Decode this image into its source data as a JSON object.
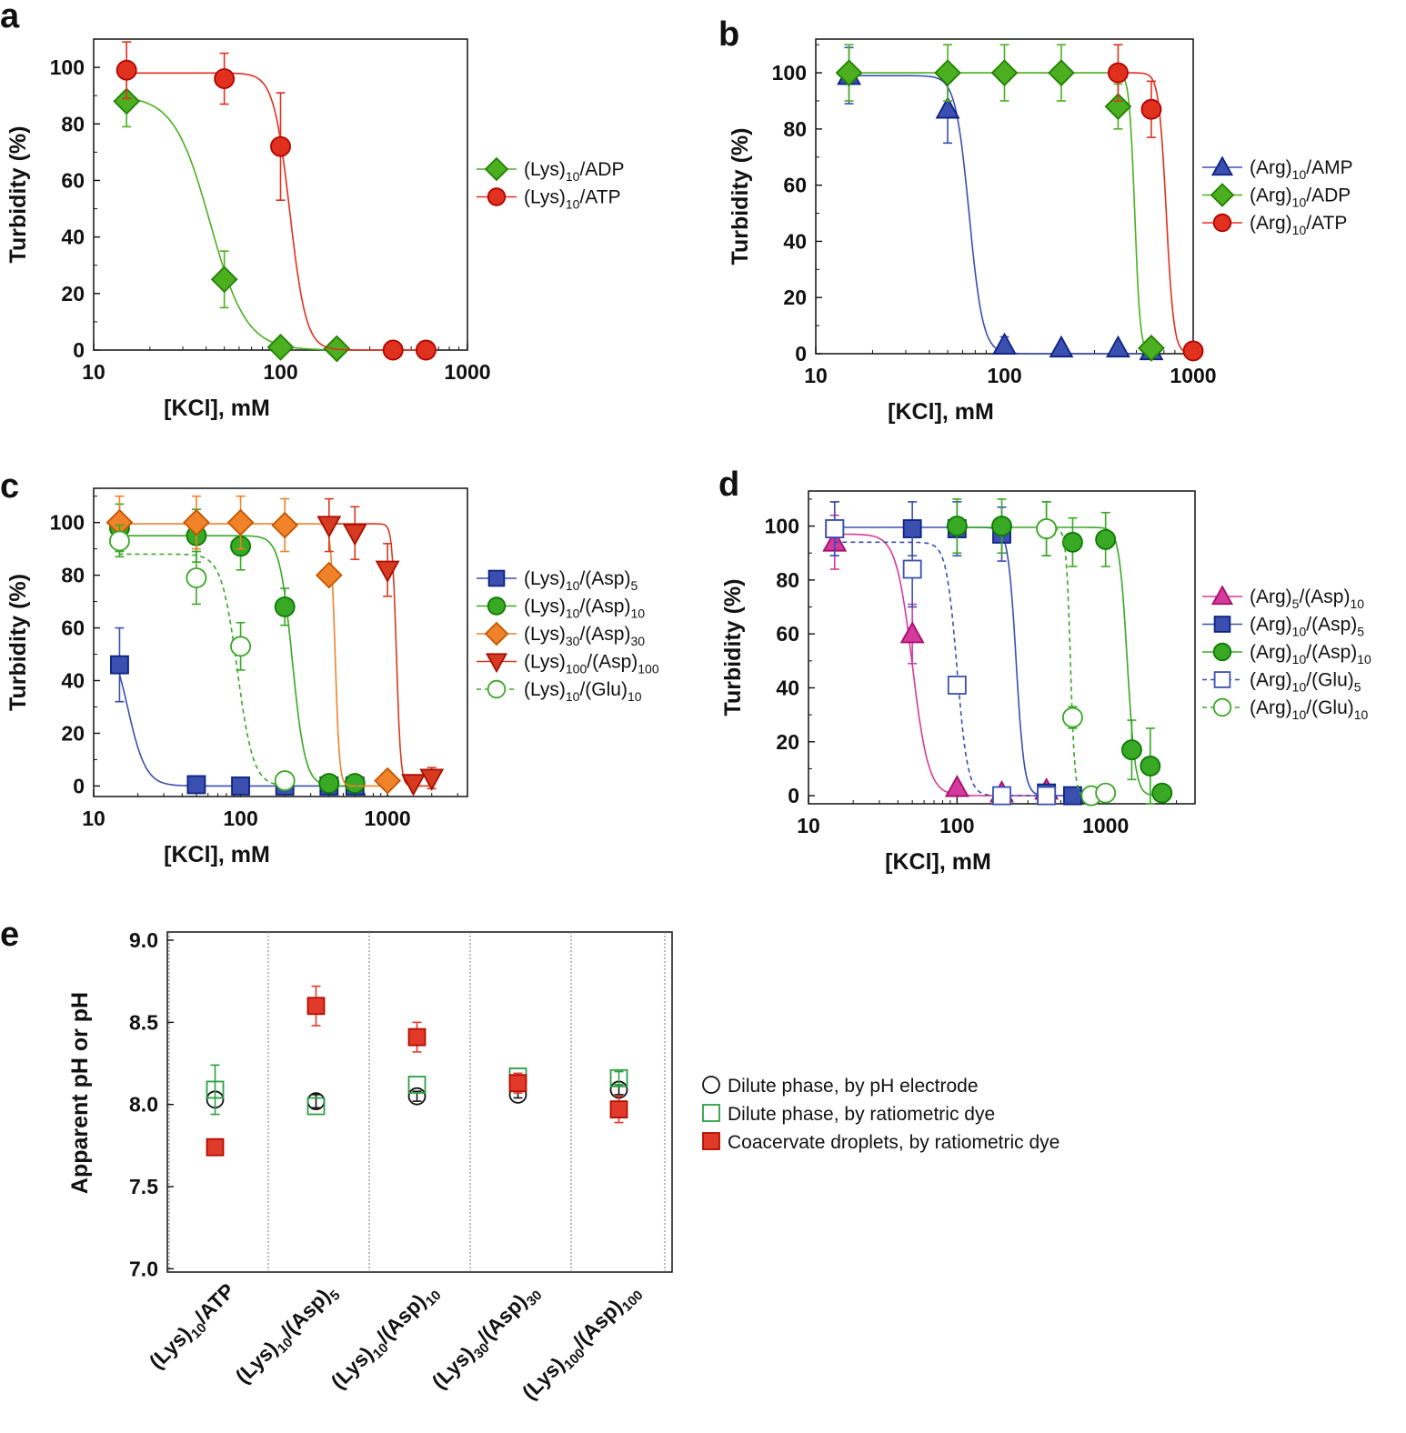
{
  "chart_data": [
    {
      "panel": "a",
      "type": "scatter",
      "xscale": "log",
      "xlim": [
        10,
        1000
      ],
      "ylim": [
        0,
        110
      ],
      "xticks": [
        "10",
        "100",
        "1000"
      ],
      "yticks": [
        "0",
        "20",
        "40",
        "60",
        "80",
        "100"
      ],
      "xlabel": "[KCl], mM",
      "ylabel": "Turbidity (%)",
      "legend_position": "right",
      "series": [
        {
          "name": "(Lys)10/ADP",
          "label_parts": [
            [
              "(Lys)",
              ""
            ],
            [
              "10",
              "sub"
            ],
            [
              "/ADP",
              ""
            ]
          ],
          "color": "#4caf20",
          "marker": "diamond",
          "filled": true,
          "dashed": false,
          "x": [
            15,
            50,
            100,
            200
          ],
          "y": [
            88,
            25,
            1,
            0.5
          ],
          "err": [
            9,
            10,
            0,
            0
          ],
          "fit": {
            "top": 90,
            "x50": 42,
            "n": 4.5
          }
        },
        {
          "name": "(Lys)10/ATP",
          "label_parts": [
            [
              "(Lys)",
              ""
            ],
            [
              "10",
              "sub"
            ],
            [
              "/ATP",
              ""
            ]
          ],
          "color": "#e0301e",
          "marker": "circle",
          "filled": true,
          "dashed": false,
          "x": [
            15,
            50,
            100,
            400,
            600
          ],
          "y": [
            99,
            96,
            72,
            0,
            0
          ],
          "err": [
            10,
            9,
            19,
            0,
            0
          ],
          "fit": {
            "top": 98,
            "x50": 112,
            "n": 10
          }
        }
      ]
    },
    {
      "panel": "b",
      "type": "scatter",
      "xscale": "log",
      "xlim": [
        10,
        1000
      ],
      "ylim": [
        0,
        112
      ],
      "xticks": [
        "10",
        "100",
        "1000"
      ],
      "yticks": [
        "0",
        "20",
        "40",
        "60",
        "80",
        "100"
      ],
      "xlabel": "[KCl], mM",
      "ylabel": "Turbidity (%)",
      "legend_position": "right",
      "series": [
        {
          "name": "(Arg)10/AMP",
          "label_parts": [
            [
              "(Arg)",
              ""
            ],
            [
              "10",
              "sub"
            ],
            [
              "/AMP",
              ""
            ]
          ],
          "color": "#3a4fb0",
          "marker": "triangle",
          "filled": true,
          "dashed": false,
          "x": [
            15,
            50,
            100,
            200,
            400,
            600
          ],
          "y": [
            99,
            87,
            3,
            2,
            2,
            1
          ],
          "err": [
            10,
            12,
            3,
            0,
            0,
            0
          ],
          "fit": {
            "top": 99,
            "x50": 65,
            "n": 12
          }
        },
        {
          "name": "(Arg)10/ADP",
          "label_parts": [
            [
              "(Arg)",
              ""
            ],
            [
              "10",
              "sub"
            ],
            [
              "/ADP",
              ""
            ]
          ],
          "color": "#4caf20",
          "marker": "diamond",
          "filled": true,
          "dashed": false,
          "x": [
            15,
            50,
            100,
            200,
            400,
            600
          ],
          "y": [
            100,
            100,
            100,
            100,
            88,
            2
          ],
          "err": [
            10,
            10,
            10,
            10,
            8,
            0
          ],
          "fit": {
            "top": 100,
            "x50": 490,
            "n": 30
          }
        },
        {
          "name": "(Arg)10/ATP",
          "label_parts": [
            [
              "(Arg)",
              ""
            ],
            [
              "10",
              "sub"
            ],
            [
              "/ATP",
              ""
            ]
          ],
          "color": "#e0301e",
          "marker": "circle",
          "filled": true,
          "dashed": false,
          "x": [
            400,
            600,
            1000
          ],
          "y": [
            100,
            87,
            1
          ],
          "err": [
            10,
            10,
            0
          ],
          "fit": {
            "top": 100,
            "x50": 720,
            "n": 22
          }
        }
      ]
    },
    {
      "panel": "c",
      "type": "scatter",
      "xscale": "log",
      "xlim": [
        10,
        3500
      ],
      "ylim": [
        -4,
        113
      ],
      "xticks": [
        "10",
        "100",
        "1000"
      ],
      "yticks": [
        "0",
        "20",
        "40",
        "60",
        "80",
        "100"
      ],
      "xlabel": "[KCl], mM",
      "ylabel": "Turbidity (%)",
      "legend_position": "right",
      "series": [
        {
          "name": "(Lys)10/(Asp)5",
          "label_parts": [
            [
              "(Lys)",
              ""
            ],
            [
              "10",
              "sub"
            ],
            [
              "/(Asp)",
              ""
            ],
            [
              "5",
              "sub"
            ]
          ],
          "color": "#3a4fb0",
          "marker": "square",
          "filled": true,
          "dashed": false,
          "x": [
            15,
            50,
            100,
            200,
            400,
            600
          ],
          "y": [
            46,
            0.5,
            0,
            0,
            0,
            0
          ],
          "err": [
            14,
            0,
            0,
            0,
            0,
            0
          ],
          "fit": {
            "top": 60,
            "x50": 17,
            "n": 7
          }
        },
        {
          "name": "(Lys)10/(Asp)10",
          "label_parts": [
            [
              "(Lys)",
              ""
            ],
            [
              "10",
              "sub"
            ],
            [
              "/(Asp)",
              ""
            ],
            [
              "10",
              "sub"
            ]
          ],
          "color": "#38a825",
          "marker": "circle",
          "filled": true,
          "dashed": false,
          "x": [
            15,
            50,
            100,
            200,
            400,
            600
          ],
          "y": [
            98,
            95,
            91,
            68,
            1,
            1
          ],
          "err": [
            9,
            10,
            9,
            7,
            0,
            0
          ],
          "fit": {
            "top": 95,
            "x50": 225,
            "n": 10
          }
        },
        {
          "name": "(Lys)30/(Asp)30",
          "label_parts": [
            [
              "(Lys)",
              ""
            ],
            [
              "30",
              "sub"
            ],
            [
              "/(Asp)",
              ""
            ],
            [
              "30",
              "sub"
            ]
          ],
          "color": "#f0822a",
          "marker": "diamond",
          "filled": true,
          "dashed": false,
          "x": [
            15,
            50,
            100,
            200,
            400,
            1000
          ],
          "y": [
            100,
            100,
            100,
            99,
            80,
            2
          ],
          "err": [
            10,
            10,
            10,
            10,
            0,
            0
          ],
          "fit": {
            "top": 99.5,
            "x50": 440,
            "n": 30
          }
        },
        {
          "name": "(Lys)100/(Asp)100",
          "label_parts": [
            [
              "(Lys)",
              ""
            ],
            [
              "100",
              "sub"
            ],
            [
              "/(Asp)",
              ""
            ],
            [
              "100",
              "sub"
            ]
          ],
          "color": "#d63a20",
          "marker": "triangle-down",
          "filled": true,
          "dashed": false,
          "x": [
            400,
            600,
            1000,
            1500,
            2000
          ],
          "y": [
            99,
            96,
            82,
            1,
            3
          ],
          "err": [
            10,
            10,
            10,
            0,
            4
          ],
          "fit": {
            "top": 99.5,
            "x50": 1150,
            "n": 30
          }
        },
        {
          "name": "(Lys)10/(Glu)10",
          "label_parts": [
            [
              "(Lys)",
              ""
            ],
            [
              "10",
              "sub"
            ],
            [
              "/(Glu)",
              ""
            ],
            [
              "10",
              "sub"
            ]
          ],
          "color": "#38a825",
          "marker": "circle",
          "filled": false,
          "dashed": true,
          "x": [
            15,
            50,
            100,
            200
          ],
          "y": [
            93,
            79,
            53,
            2
          ],
          "err": [
            6,
            10,
            9,
            0
          ],
          "fit": {
            "top": 88,
            "x50": 95,
            "n": 8
          }
        }
      ]
    },
    {
      "panel": "d",
      "type": "scatter",
      "xscale": "log",
      "xlim": [
        10,
        4000
      ],
      "ylim": [
        -3,
        113
      ],
      "xticks": [
        "10",
        "100",
        "1000"
      ],
      "yticks": [
        "0",
        "20",
        "40",
        "60",
        "80",
        "100"
      ],
      "xlabel": "[KCl], mM",
      "ylabel": "Turbidity (%)",
      "legend_position": "right",
      "series": [
        {
          "name": "(Arg)5/(Asp)10",
          "label_parts": [
            [
              "(Arg)",
              ""
            ],
            [
              "5",
              "sub"
            ],
            [
              "/(Asp)",
              ""
            ],
            [
              "10",
              "sub"
            ]
          ],
          "color": "#d43a9c",
          "marker": "triangle",
          "filled": true,
          "dashed": false,
          "x": [
            15,
            50,
            100,
            200,
            400
          ],
          "y": [
            94,
            60,
            3,
            1,
            2
          ],
          "err": [
            10,
            11,
            0,
            0,
            0
          ],
          "fit": {
            "top": 97,
            "x50": 50,
            "n": 8
          }
        },
        {
          "name": "(Arg)10/(Asp)5",
          "label_parts": [
            [
              "(Arg)",
              ""
            ],
            [
              "10",
              "sub"
            ],
            [
              "/(Asp)",
              ""
            ],
            [
              "5",
              "sub"
            ]
          ],
          "color": "#3a4fb0",
          "marker": "square",
          "filled": true,
          "dashed": false,
          "x": [
            15,
            50,
            100,
            200,
            400,
            600
          ],
          "y": [
            99,
            99,
            99,
            97,
            1,
            0
          ],
          "err": [
            10,
            10,
            10,
            10,
            0,
            0
          ],
          "fit": {
            "top": 99.5,
            "x50": 250,
            "n": 16
          }
        },
        {
          "name": "(Arg)10/(Asp)10",
          "label_parts": [
            [
              "(Arg)",
              ""
            ],
            [
              "10",
              "sub"
            ],
            [
              "/(Asp)",
              ""
            ],
            [
              "10",
              "sub"
            ]
          ],
          "color": "#38a825",
          "marker": "circle",
          "filled": true,
          "dashed": false,
          "x": [
            100,
            200,
            400,
            600,
            1000,
            1500,
            2000,
            2400
          ],
          "y": [
            100,
            100,
            99,
            94,
            95,
            17,
            11,
            1
          ],
          "err": [
            10,
            10,
            10,
            9,
            10,
            11,
            14,
            0
          ],
          "fit": {
            "top": 99.5,
            "x50": 1400,
            "n": 16
          }
        },
        {
          "name": "(Arg)10/(Glu)5",
          "label_parts": [
            [
              "(Arg)",
              ""
            ],
            [
              "10",
              "sub"
            ],
            [
              "/(Glu)",
              ""
            ],
            [
              "5",
              "sub"
            ]
          ],
          "color": "#3a4fb0",
          "marker": "square",
          "filled": false,
          "dashed": true,
          "x": [
            15,
            50,
            100,
            200,
            400
          ],
          "y": [
            99,
            84,
            41,
            0,
            0
          ],
          "err": [
            10,
            14,
            3,
            0,
            0
          ],
          "fit": {
            "top": 94,
            "x50": 100,
            "n": 12
          }
        },
        {
          "name": "(Arg)10/(Glu)10",
          "label_parts": [
            [
              "(Arg)",
              ""
            ],
            [
              "10",
              "sub"
            ],
            [
              "/(Glu)",
              ""
            ],
            [
              "10",
              "sub"
            ]
          ],
          "color": "#38a825",
          "marker": "circle",
          "filled": false,
          "dashed": true,
          "x": [
            400,
            600,
            800,
            1000
          ],
          "y": [
            99,
            29,
            0,
            1
          ],
          "err": [
            10,
            4,
            0,
            0
          ],
          "fit": {
            "top": 99,
            "x50": 580,
            "n": 30
          }
        }
      ]
    },
    {
      "panel": "e",
      "type": "scatter",
      "ylim": [
        6.98,
        9.05
      ],
      "yticks": [
        "7.0",
        "7.5",
        "8.0",
        "8.5",
        "9.0"
      ],
      "xlabel": "",
      "ylabel": "Apparent pH or pH",
      "legend_position": "right",
      "categories": [
        [
          [
            "(Lys)",
            ""
          ],
          [
            "10",
            "sub"
          ],
          [
            "/ATP",
            ""
          ]
        ],
        [
          [
            "(Lys)",
            ""
          ],
          [
            "10",
            "sub"
          ],
          [
            "/(Asp)",
            ""
          ],
          [
            "5",
            "sub"
          ]
        ],
        [
          [
            "(Lys)",
            ""
          ],
          [
            "10",
            "sub"
          ],
          [
            "/(Asp)",
            ""
          ],
          [
            "10",
            "sub"
          ]
        ],
        [
          [
            "(Lys)",
            ""
          ],
          [
            "30",
            "sub"
          ],
          [
            "/(Asp)",
            ""
          ],
          [
            "30",
            "sub"
          ]
        ],
        [
          [
            "(Lys)",
            ""
          ],
          [
            "100",
            "sub"
          ],
          [
            "/(Asp)",
            ""
          ],
          [
            "100",
            "sub"
          ]
        ]
      ],
      "series": [
        {
          "name": "Dilute phase, by pH electrode",
          "marker": "circle",
          "filled": false,
          "color": "#111111",
          "values": [
            8.03,
            8.02,
            8.05,
            8.06,
            8.09
          ],
          "err": [
            0,
            0.04,
            0.03,
            0.02,
            0.03
          ]
        },
        {
          "name": "Dilute phase, by ratiometric dye",
          "marker": "square",
          "filled": false,
          "color": "#2aa044",
          "values": [
            8.09,
            7.99,
            8.12,
            8.17,
            8.16
          ],
          "err": [
            0.15,
            0,
            0,
            0,
            0.04
          ]
        },
        {
          "name": "Coacervate droplets, by ratiometric dye",
          "marker": "square",
          "filled": true,
          "color": "#e13a2a",
          "values": [
            7.74,
            8.6,
            8.41,
            8.13,
            7.97
          ],
          "err": [
            0,
            0.12,
            0.09,
            0.06,
            0.08
          ]
        }
      ]
    }
  ]
}
